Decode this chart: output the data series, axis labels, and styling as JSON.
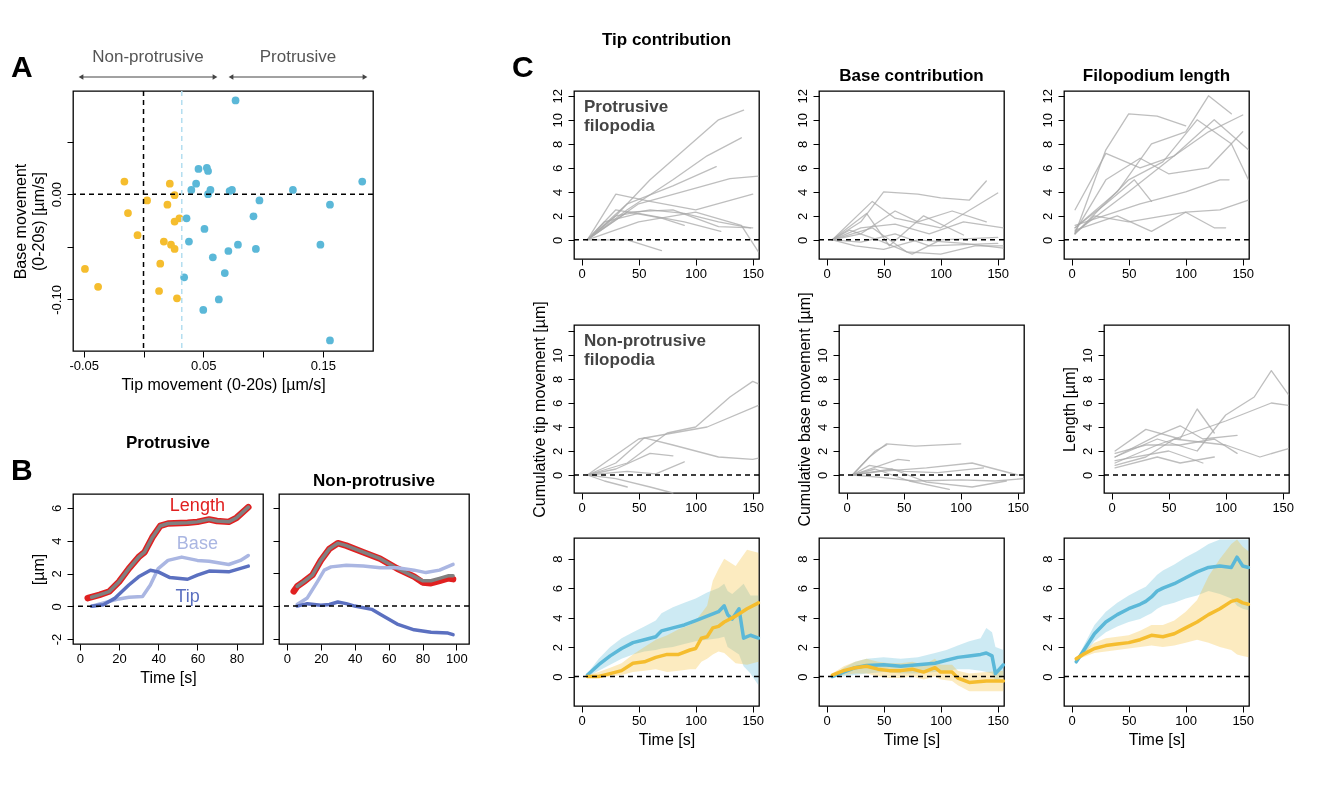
{
  "chart_data": [
    {
      "type": "scatter",
      "xlabel": "Tip movement (0-20s) [µm/s]",
      "ylabel": "Base movement\n(0-20s) [µm/s]",
      "xlim": [
        -0.059,
        0.192
      ],
      "ylim": [
        -0.149,
        0.098
      ],
      "xticks": [
        -0.05,
        {
          "value": 0,
          "label": null
        },
        0.05,
        {
          "value": 0.1,
          "label": null
        },
        0.15
      ],
      "yticks": [
        {
          "value": 0.05,
          "label": null
        },
        {
          "value": 0,
          "label": "0.00"
        },
        {
          "value": -0.05,
          "label": null
        },
        {
          "value": -0.1,
          "label": "-0.10"
        }
      ],
      "marker": "circle",
      "annotations": [
        "A",
        "Non-protrusive",
        "Protrusive"
      ],
      "ref_lines": [
        {
          "axis": "x",
          "value": 0,
          "color": "#000000",
          "line_style": "dashed"
        },
        {
          "axis": "y",
          "value": 0,
          "color": "#000000",
          "line_style": "dashed"
        },
        {
          "axis": "x",
          "value": 0.032,
          "color": "#b4def0",
          "line_style": "dashed"
        }
      ],
      "series": [
        {
          "color": "#f5bd2e",
          "x": [
            -0.016,
            0.022,
            0.026,
            0.003,
            0.02,
            -0.013,
            0.03,
            0.026,
            -0.005,
            0.017,
            0.023,
            0.026,
            0.014,
            -0.049,
            -0.038,
            0.013,
            0.028
          ],
          "values": [
            0.012,
            0.01,
            -0.001,
            -0.006,
            -0.01,
            -0.018,
            -0.023,
            -0.026,
            -0.039,
            -0.045,
            -0.048,
            -0.052,
            -0.066,
            -0.071,
            -0.088,
            -0.092,
            -0.099
          ]
        },
        {
          "color": "#5bb8d8",
          "x": [
            0.077,
            0.046,
            0.053,
            0.054,
            0.044,
            0.04,
            0.056,
            0.054,
            0.072,
            0.074,
            0.125,
            0.183,
            0.097,
            0.156,
            0.036,
            0.092,
            0.051,
            0.038,
            0.079,
            0.071,
            0.094,
            0.148,
            0.058,
            0.068,
            0.034,
            0.063,
            0.05,
            0.156
          ],
          "values": [
            0.089,
            0.024,
            0.025,
            0.022,
            0.01,
            0.004,
            0.004,
            0.0,
            0.003,
            0.004,
            0.004,
            0.012,
            -0.006,
            -0.01,
            -0.023,
            -0.021,
            -0.033,
            -0.045,
            -0.048,
            -0.054,
            -0.052,
            -0.048,
            -0.06,
            -0.075,
            -0.079,
            -0.1,
            -0.11,
            -0.139
          ]
        }
      ]
    },
    {
      "type": "line",
      "title": "Protrusive",
      "ylabel": "[µm]",
      "xlabel": "Time [s]",
      "xlim": [
        -3.5,
        93.5
      ],
      "ylim": [
        -2.3,
        6.85
      ],
      "xticks": [
        0,
        20,
        40,
        60,
        80
      ],
      "yticks": [
        -2,
        0,
        2,
        4,
        6
      ],
      "annotations": [
        "B"
      ],
      "ref_lines": [
        {
          "axis": "y",
          "value": 0,
          "color": "#000000",
          "line_style": "dashed"
        }
      ],
      "series": [
        {
          "name": "Length",
          "color": "#e02020",
          "x": [
            4,
            10,
            15,
            20,
            25,
            30,
            33,
            37,
            41,
            45,
            55,
            60,
            66,
            70,
            76,
            80,
            86
          ],
          "values": [
            0.5,
            0.7,
            0.9,
            1.5,
            2.3,
            3.0,
            3.3,
            4.2,
            4.9,
            5.05,
            5.1,
            5.15,
            5.3,
            5.2,
            5.15,
            5.4,
            6.05
          ]
        },
        {
          "color": "#808080",
          "x": [
            6,
            10,
            15,
            20,
            25,
            30,
            33,
            37,
            41,
            45,
            55,
            60,
            66,
            70,
            76,
            80,
            86
          ],
          "values": [
            0.55,
            0.7,
            0.9,
            1.5,
            2.3,
            3.0,
            3.3,
            4.2,
            4.9,
            5.05,
            5.1,
            5.15,
            5.3,
            5.2,
            5.15,
            5.4,
            6.05
          ]
        },
        {
          "name": "Base",
          "color": "#aab6e2",
          "x": [
            6,
            15,
            20,
            25,
            32,
            36,
            40,
            45,
            52,
            60,
            66,
            76,
            82,
            86
          ],
          "values": [
            0,
            0.3,
            0.45,
            0.55,
            0.6,
            1.3,
            2.3,
            2.8,
            3.0,
            2.8,
            2.75,
            2.55,
            2.8,
            3.1
          ]
        },
        {
          "name": "Tip",
          "color": "#5b70c0",
          "x": [
            6,
            12,
            18,
            25,
            30,
            36,
            40,
            46,
            55,
            60,
            66,
            76,
            86
          ],
          "values": [
            0,
            0.1,
            0.5,
            1.3,
            1.8,
            2.2,
            2.1,
            1.75,
            1.65,
            1.9,
            2.15,
            2.1,
            2.45
          ]
        }
      ]
    },
    {
      "type": "line",
      "title": "Non-protrusive",
      "xlim": [
        -4.7,
        107.4
      ],
      "ylim": [
        -2.32,
        6.86
      ],
      "xticks": [
        0,
        20,
        40,
        60,
        80,
        100
      ],
      "yticks": [
        -2,
        0,
        2,
        4,
        6
      ],
      "tick_labels": "x",
      "ref_lines": [
        {
          "axis": "y",
          "value": 0,
          "color": "#000000",
          "line_style": "dashed"
        }
      ],
      "series": [
        {
          "color": "#e02020",
          "x": [
            4,
            6,
            10,
            15,
            20,
            25,
            30,
            35,
            45,
            55,
            65,
            75,
            80,
            85,
            90,
            95,
            98
          ],
          "values": [
            0.9,
            1.2,
            1.5,
            1.9,
            2.8,
            3.5,
            3.85,
            3.7,
            3.3,
            2.9,
            2.3,
            1.8,
            1.45,
            1.4,
            1.55,
            1.7,
            1.65
          ]
        },
        {
          "color": "#808080",
          "x": [
            6,
            10,
            15,
            20,
            25,
            30,
            35,
            45,
            55,
            65,
            75,
            80,
            85,
            90,
            95,
            98
          ],
          "values": [
            1.2,
            1.5,
            1.9,
            2.8,
            3.5,
            3.85,
            3.7,
            3.3,
            2.9,
            2.3,
            1.8,
            1.55,
            1.55,
            1.7,
            1.85,
            1.85
          ]
        },
        {
          "color": "#aab6e2",
          "x": [
            6,
            12,
            18,
            22,
            26,
            35,
            45,
            55,
            65,
            75,
            82,
            90,
            98
          ],
          "values": [
            0.1,
            0.5,
            1.5,
            2.2,
            2.4,
            2.5,
            2.45,
            2.35,
            2.35,
            2.2,
            2.05,
            2.2,
            2.55
          ]
        },
        {
          "color": "#5b70c0",
          "x": [
            6,
            12,
            20,
            25,
            30,
            35,
            40,
            50,
            55,
            65,
            75,
            85,
            95,
            98
          ],
          "values": [
            0,
            0.15,
            0.05,
            0.1,
            0.25,
            0.15,
            0,
            -0.2,
            -0.5,
            -1.1,
            -1.45,
            -1.6,
            -1.65,
            -1.75
          ]
        }
      ]
    },
    {
      "type": "line",
      "title": "Tip contribution",
      "xlim": [
        -6.7,
        155.5
      ],
      "ylim": [
        -1.6,
        12.4
      ],
      "xticks": [
        0,
        50,
        100,
        150
      ],
      "yticks": [
        0,
        2,
        4,
        6,
        8,
        10,
        12
      ],
      "annotations": [
        "C",
        "Protrusive\nfilopodia"
      ],
      "ref_lines": [
        {
          "axis": "y",
          "value": 0,
          "color": "#000000",
          "line_style": "dashed"
        }
      ],
      "series": [
        {
          "color": "#a8a8a8",
          "x": [
            5,
            30,
            60,
            90,
            120,
            142
          ],
          "values": [
            0,
            2,
            5,
            7.5,
            10,
            10.8
          ]
        },
        {
          "color": "#a8a8a8",
          "x": [
            5,
            40,
            80,
            110,
            140
          ],
          "values": [
            0,
            2.5,
            5,
            7,
            8.5
          ]
        },
        {
          "color": "#a8a8a8",
          "x": [
            5,
            40,
            80,
            118
          ],
          "values": [
            0,
            3,
            4.5,
            6.1
          ]
        },
        {
          "color": "#a8a8a8",
          "x": [
            5,
            50,
            100,
            130,
            155
          ],
          "values": [
            0,
            3,
            4.3,
            5.1,
            5.3
          ]
        },
        {
          "color": "#a8a8a8",
          "x": [
            5,
            30,
            60,
            100,
            150
          ],
          "values": [
            0,
            3.8,
            3.2,
            2.5,
            3.8
          ]
        },
        {
          "color": "#a8a8a8",
          "x": [
            5,
            30,
            60,
            90,
            120,
            148
          ],
          "values": [
            0,
            2,
            2.5,
            2.2,
            1.5,
            1
          ]
        },
        {
          "color": "#a8a8a8",
          "x": [
            5,
            40,
            80,
            120,
            150
          ],
          "values": [
            0,
            2.3,
            2.5,
            1.1,
            1
          ]
        },
        {
          "color": "#a8a8a8",
          "x": [
            5,
            20,
            50,
            90,
            122
          ],
          "values": [
            0,
            1.5,
            2.2,
            1.5,
            0.7
          ]
        },
        {
          "color": "#a8a8a8",
          "x": [
            5,
            40,
            70
          ],
          "values": [
            0,
            0,
            -0.9
          ]
        },
        {
          "color": "#a8a8a8",
          "x": [
            5,
            50,
            100,
            140,
            155
          ],
          "values": [
            0,
            1.5,
            2.3,
            1.2,
            -1
          ]
        },
        {
          "color": "#a8a8a8",
          "x": [
            5,
            30,
            70,
            90
          ],
          "values": [
            0,
            2.5,
            1.8,
            1.2
          ]
        }
      ]
    },
    {
      "type": "line",
      "title": "Base contribution",
      "xlim": [
        -6.7,
        155.5
      ],
      "ylim": [
        -1.6,
        12.4
      ],
      "xticks": [
        0,
        50,
        100,
        150
      ],
      "yticks": [
        0,
        2,
        4,
        6,
        8,
        10,
        12
      ],
      "ref_lines": [
        {
          "axis": "y",
          "value": 0,
          "color": "#000000",
          "line_style": "dashed"
        }
      ],
      "series": [
        {
          "color": "#a8a8a8",
          "x": [
            5,
            30,
            50,
            80,
            100,
            125,
            140
          ],
          "values": [
            0,
            1.5,
            4,
            3.8,
            3.5,
            3.3,
            4.9
          ]
        },
        {
          "color": "#a8a8a8",
          "x": [
            5,
            40,
            60,
            100,
            150
          ],
          "values": [
            0,
            3.2,
            1.8,
            1,
            3.9
          ]
        },
        {
          "color": "#a8a8a8",
          "x": [
            5,
            30,
            60,
            90,
            120,
            155
          ],
          "values": [
            0,
            1,
            1.3,
            0.5,
            1.5,
            1
          ]
        },
        {
          "color": "#a8a8a8",
          "x": [
            5,
            25,
            50,
            80,
            120,
            155
          ],
          "values": [
            0,
            -0.5,
            -0.8,
            0,
            -0.3,
            -0.7
          ]
        },
        {
          "color": "#a8a8a8",
          "x": [
            5,
            40,
            70,
            100,
            130,
            155
          ],
          "values": [
            0,
            1,
            -1,
            -1.2,
            -0.5,
            -0.5
          ]
        },
        {
          "color": "#a8a8a8",
          "x": [
            5,
            30,
            60,
            80,
            110,
            140
          ],
          "values": [
            0,
            0.5,
            2.4,
            1.5,
            2.4,
            1.5
          ]
        },
        {
          "color": "#a8a8a8",
          "x": [
            5,
            20,
            45,
            75,
            100,
            150
          ],
          "values": [
            0,
            0.8,
            0,
            -1.2,
            0,
            0.2
          ]
        },
        {
          "color": "#a8a8a8",
          "x": [
            5,
            35,
            55,
            85,
            120
          ],
          "values": [
            0,
            2.2,
            -0.5,
            2,
            0.4
          ]
        },
        {
          "color": "#a8a8a8",
          "x": [
            5,
            30,
            60,
            90,
            150
          ],
          "values": [
            0,
            -0.2,
            0.5,
            -0.5,
            -0.3
          ]
        }
      ]
    },
    {
      "type": "line",
      "title": "Filopodium length",
      "xlim": [
        -6.7,
        155.5
      ],
      "ylim": [
        -1.6,
        12.4
      ],
      "xticks": [
        0,
        50,
        100,
        150
      ],
      "yticks": [
        0,
        2,
        4,
        6,
        8,
        10,
        12
      ],
      "ref_lines": [
        {
          "axis": "y",
          "value": 0,
          "color": "#000000",
          "line_style": "dashed"
        }
      ],
      "series": [
        {
          "color": "#a8a8a8",
          "x": [
            3,
            30,
            50,
            75,
            100
          ],
          "values": [
            0.5,
            7.5,
            10.5,
            10.3,
            9.5
          ]
        },
        {
          "color": "#a8a8a8",
          "x": [
            3,
            40,
            70,
            100,
            120,
            140
          ],
          "values": [
            1,
            4,
            8,
            9,
            12,
            10.5
          ]
        },
        {
          "color": "#a8a8a8",
          "x": [
            3,
            50,
            90,
            125,
            155
          ],
          "values": [
            0.6,
            4,
            7,
            10,
            7.5
          ]
        },
        {
          "color": "#a8a8a8",
          "x": [
            3,
            30,
            60,
            90,
            120,
            150
          ],
          "values": [
            2.5,
            7.2,
            6,
            7,
            9,
            10.4
          ]
        },
        {
          "color": "#a8a8a8",
          "x": [
            3,
            20,
            50,
            100,
            125,
            135
          ],
          "values": [
            0.5,
            2,
            1.5,
            2.3,
            1,
            1
          ]
        },
        {
          "color": "#a8a8a8",
          "x": [
            3,
            30,
            55,
            70
          ],
          "values": [
            1,
            3,
            5,
            3.2
          ]
        },
        {
          "color": "#a8a8a8",
          "x": [
            3,
            40,
            70,
            100,
            130,
            155
          ],
          "values": [
            0.8,
            2,
            0.7,
            2.3,
            2.5,
            3.3
          ]
        },
        {
          "color": "#a8a8a8",
          "x": [
            3,
            50,
            80,
            110,
            140,
            155
          ],
          "values": [
            0.5,
            5,
            6.5,
            10,
            8,
            5
          ]
        },
        {
          "color": "#a8a8a8",
          "x": [
            3,
            60,
            100,
            130,
            138
          ],
          "values": [
            1.2,
            3,
            4,
            5,
            5
          ]
        },
        {
          "color": "#a8a8a8",
          "x": [
            3,
            30,
            60,
            85,
            120,
            150
          ],
          "values": [
            0.7,
            5,
            6.8,
            5.5,
            6,
            9
          ]
        }
      ]
    },
    {
      "type": "line",
      "ylabel": "Cumulative tip movement [µm]",
      "xlim": [
        -6.7,
        155.5
      ],
      "ylim": [
        -1.5,
        12.5
      ],
      "xticks": [
        0,
        50,
        100,
        150
      ],
      "yticks": [
        0,
        2,
        4,
        6,
        8,
        10,
        {
          "value": 12,
          "label": null
        }
      ],
      "annotations": [
        "Non-protrusive\nfilopodia"
      ],
      "ref_lines": [
        {
          "axis": "y",
          "value": 0,
          "color": "#000000",
          "line_style": "dashed"
        }
      ],
      "series": [
        {
          "color": "#a8a8a8",
          "x": [
            5,
            40,
            75,
            100,
            130,
            150,
            155
          ],
          "values": [
            0,
            1,
            3.5,
            4,
            6.5,
            7.8,
            7.6
          ]
        },
        {
          "color": "#a8a8a8",
          "x": [
            5,
            50,
            80,
            110,
            155
          ],
          "values": [
            0,
            3,
            3.5,
            4,
            5.8
          ]
        },
        {
          "color": "#a8a8a8",
          "x": [
            5,
            30,
            55,
            80,
            120,
            150,
            155
          ],
          "values": [
            0,
            1,
            3.1,
            2.5,
            1.5,
            1.3,
            1.4
          ]
        },
        {
          "color": "#a8a8a8",
          "x": [
            5,
            30,
            60,
            80
          ],
          "values": [
            0,
            0.5,
            1.8,
            1.6
          ]
        },
        {
          "color": "#a8a8a8",
          "x": [
            5,
            20,
            40
          ],
          "values": [
            0,
            -0.5,
            -1
          ]
        },
        {
          "color": "#a8a8a8",
          "x": [
            5,
            30,
            60,
            80
          ],
          "values": [
            0,
            -0.3,
            -1,
            -1.5
          ]
        },
        {
          "color": "#a8a8a8",
          "x": [
            5,
            40,
            65,
            90
          ],
          "values": [
            0,
            0.3,
            0.1,
            1.1
          ]
        }
      ]
    },
    {
      "type": "line",
      "ylabel": "Cumulative base movement [µm]",
      "xlim": [
        -6.7,
        155.5
      ],
      "ylim": [
        -1.5,
        12.5
      ],
      "xticks": [
        0,
        50,
        100,
        150
      ],
      "yticks": [
        0,
        2,
        4,
        6,
        8,
        10,
        {
          "value": 12,
          "label": null
        }
      ],
      "ref_lines": [
        {
          "axis": "y",
          "value": 0,
          "color": "#000000",
          "line_style": "dashed"
        }
      ],
      "series": [
        {
          "color": "#a8a8a8",
          "x": [
            5,
            20,
            35,
            60,
            100
          ],
          "values": [
            0,
            1.5,
            2.6,
            2.4,
            2.6
          ]
        },
        {
          "color": "#a8a8a8",
          "x": [
            5,
            25,
            35
          ],
          "values": [
            0,
            2,
            2.5
          ]
        },
        {
          "color": "#a8a8a8",
          "x": [
            5,
            20,
            50,
            80,
            120
          ],
          "values": [
            0,
            0.8,
            0.3,
            0.2,
            0.6
          ]
        },
        {
          "color": "#a8a8a8",
          "x": [
            5,
            25,
            55,
            90
          ],
          "values": [
            0,
            0.5,
            -0.5,
            -1.2
          ]
        },
        {
          "color": "#a8a8a8",
          "x": [
            5,
            30,
            70,
            110,
            150
          ],
          "values": [
            0,
            0.3,
            0.6,
            1,
            0
          ]
        },
        {
          "color": "#a8a8a8",
          "x": [
            5,
            30,
            60,
            100,
            130,
            155
          ],
          "values": [
            0,
            -0.2,
            -0.5,
            -0.4,
            -0.5,
            -0.3
          ]
        },
        {
          "color": "#a8a8a8",
          "x": [
            5,
            40,
            70,
            110,
            140
          ],
          "values": [
            0,
            0.5,
            -0.6,
            -1,
            -0.5
          ]
        },
        {
          "color": "#a8a8a8",
          "x": [
            5,
            45,
            55
          ],
          "values": [
            0,
            1.3,
            1.2
          ]
        }
      ]
    },
    {
      "type": "line",
      "ylabel": "Length [µm]",
      "xlim": [
        -6.7,
        155.5
      ],
      "ylim": [
        -1.5,
        12.5
      ],
      "xticks": [
        0,
        50,
        100,
        150
      ],
      "yticks": [
        0,
        2,
        4,
        6,
        8,
        10,
        {
          "value": 12,
          "label": null
        }
      ],
      "ref_lines": [
        {
          "axis": "y",
          "value": 0,
          "color": "#000000",
          "line_style": "dashed"
        }
      ],
      "series": [
        {
          "color": "#a8a8a8",
          "x": [
            3,
            40,
            75,
            100,
            125,
            140,
            155
          ],
          "values": [
            1.5,
            3,
            2,
            5,
            6.5,
            8.7,
            6.7
          ]
        },
        {
          "color": "#a8a8a8",
          "x": [
            3,
            40,
            70,
            100,
            140,
            155
          ],
          "values": [
            1,
            2.5,
            3.5,
            4.5,
            6,
            5.8
          ]
        },
        {
          "color": "#a8a8a8",
          "x": [
            3,
            30,
            60,
            75,
            90
          ],
          "values": [
            2,
            3.8,
            3,
            5.5,
            3.5
          ]
        },
        {
          "color": "#a8a8a8",
          "x": [
            3,
            40,
            60,
            80,
            110
          ],
          "values": [
            1.5,
            3.3,
            4.1,
            3,
            3.3
          ]
        },
        {
          "color": "#a8a8a8",
          "x": [
            3,
            30,
            55,
            100,
            130,
            155
          ],
          "values": [
            0.8,
            1.5,
            3,
            2.5,
            1.5,
            2.2
          ]
        },
        {
          "color": "#a8a8a8",
          "x": [
            3,
            40,
            60,
            90
          ],
          "values": [
            0.6,
            1.5,
            1,
            1.5
          ]
        },
        {
          "color": "#a8a8a8",
          "x": [
            3,
            30,
            60,
            90,
            110
          ],
          "values": [
            1.8,
            2.5,
            2.5,
            3,
            1.8
          ]
        },
        {
          "color": "#a8a8a8",
          "x": [
            3,
            50,
            80
          ],
          "values": [
            1.2,
            2,
            1
          ]
        }
      ]
    },
    {
      "type": "line",
      "xlabel": "Time [s]",
      "xlim": [
        -6.7,
        155.5
      ],
      "ylim": [
        -2,
        9.4
      ],
      "xticks": [
        0,
        50,
        100,
        150
      ],
      "yticks": [
        0,
        2,
        4,
        6,
        8
      ],
      "ref_lines": [
        {
          "axis": "y",
          "value": 0,
          "color": "#000000",
          "line_style": "dashed"
        }
      ],
      "series": [
        {
          "color": "#5bb8d8",
          "x": [
            5,
            15,
            25,
            35,
            45,
            55,
            65,
            70,
            80,
            90,
            100,
            110,
            120,
            125,
            128,
            132,
            138,
            142,
            148,
            155
          ],
          "values": [
            0.1,
            0.8,
            1.4,
            1.9,
            2.3,
            2.5,
            2.7,
            3.1,
            3.3,
            3.5,
            3.8,
            4.1,
            4.4,
            4.8,
            4.2,
            3.9,
            4.6,
            2.6,
            2.8,
            2.6
          ],
          "lower": [
            0,
            0.4,
            0.8,
            1.2,
            1.5,
            1.7,
            1.8,
            1.9,
            2.0,
            2.2,
            2.4,
            2.5,
            2.6,
            2.7,
            2.0,
            1.8,
            1.5,
            0.7,
            0.2,
            -0.6
          ],
          "upper": [
            0.2,
            1.2,
            2.0,
            2.6,
            3.0,
            3.4,
            3.8,
            4.3,
            4.7,
            5.0,
            5.3,
            5.7,
            6.0,
            6.3,
            5.8,
            5.6,
            6.0,
            6.3,
            5.5,
            5.5
          ]
        },
        {
          "color": "#f5bd2e",
          "x": [
            5,
            15,
            25,
            35,
            45,
            55,
            65,
            75,
            85,
            95,
            100,
            105,
            110,
            115,
            120,
            125,
            135,
            145,
            155
          ],
          "values": [
            0,
            0,
            0.2,
            0.4,
            0.9,
            1.0,
            1.3,
            1.5,
            1.5,
            1.8,
            1.9,
            2.6,
            2.7,
            3.3,
            3.4,
            3.7,
            4.1,
            4.6,
            5.0
          ],
          "lower": [
            0,
            -0.1,
            0,
            0.1,
            0.3,
            0.4,
            0.5,
            0.3,
            0.4,
            0.5,
            0.5,
            1.0,
            1.2,
            1.5,
            1.7,
            1.6,
            0.9,
            0.8,
            1.0
          ],
          "upper": [
            0.1,
            0.3,
            0.6,
            0.9,
            1.5,
            2.0,
            2.5,
            2.8,
            3.2,
            3.5,
            3.8,
            4.3,
            4.8,
            6.5,
            7.3,
            8.0,
            7.5,
            8.6,
            8.4
          ]
        }
      ]
    },
    {
      "type": "line",
      "xlabel": "Time [s]",
      "xlim": [
        -6.7,
        155.5
      ],
      "ylim": [
        -2,
        9.4
      ],
      "xticks": [
        0,
        50,
        100,
        150
      ],
      "yticks": [
        0,
        2,
        4,
        6,
        8
      ],
      "ref_lines": [
        {
          "axis": "y",
          "value": 0,
          "color": "#000000",
          "line_style": "dashed"
        }
      ],
      "series": [
        {
          "color": "#5bb8d8",
          "x": [
            5,
            15,
            25,
            35,
            50,
            65,
            80,
            95,
            105,
            115,
            125,
            135,
            140,
            145,
            148,
            155
          ],
          "values": [
            0,
            0.3,
            0.6,
            0.75,
            0.8,
            0.7,
            0.8,
            0.9,
            1.1,
            1.3,
            1.4,
            1.5,
            1.6,
            1.4,
            0.2,
            0.8
          ],
          "lower": [
            0,
            0,
            0.1,
            0.2,
            0.3,
            0.2,
            0.2,
            0.3,
            0.4,
            0.5,
            0.5,
            0.4,
            0.3,
            0.2,
            -0.3,
            0
          ],
          "upper": [
            0,
            0.6,
            1.0,
            1.2,
            1.3,
            1.2,
            1.3,
            1.6,
            1.8,
            2.1,
            2.4,
            2.6,
            3.3,
            3.0,
            2.0,
            1.8
          ]
        },
        {
          "color": "#f5bd2e",
          "x": [
            5,
            15,
            25,
            35,
            45,
            55,
            65,
            75,
            85,
            95,
            100,
            110,
            115,
            125,
            140,
            155
          ],
          "values": [
            0.1,
            0.4,
            0.6,
            0.7,
            0.5,
            0.4,
            0.4,
            0.5,
            0.3,
            0.6,
            0.3,
            0.3,
            -0.1,
            -0.4,
            -0.3,
            -0.3
          ],
          "lower": [
            0,
            0.1,
            0.2,
            0.2,
            0,
            -0.1,
            -0.1,
            0,
            -0.2,
            0,
            -0.2,
            -0.3,
            -0.6,
            -1.0,
            -1.0,
            -1.0
          ],
          "upper": [
            0.2,
            0.7,
            1.0,
            1.2,
            1.0,
            0.9,
            0.9,
            1.0,
            0.8,
            1.2,
            0.8,
            0.8,
            0.4,
            0.2,
            0.3,
            0.4
          ]
        }
      ]
    },
    {
      "type": "line",
      "xlabel": "Time [s]",
      "xlim": [
        -6.7,
        155.5
      ],
      "ylim": [
        -2,
        9.4
      ],
      "xticks": [
        0,
        50,
        100,
        150
      ],
      "yticks": [
        0,
        2,
        4,
        6,
        8
      ],
      "ref_lines": [
        {
          "axis": "y",
          "value": 0,
          "color": "#000000",
          "line_style": "dashed"
        }
      ],
      "series": [
        {
          "color": "#5bb8d8",
          "x": [
            4,
            10,
            20,
            30,
            40,
            50,
            60,
            65,
            70,
            75,
            80,
            90,
            100,
            110,
            120,
            130,
            140,
            145,
            150,
            155
          ],
          "values": [
            1.0,
            1.7,
            2.9,
            3.7,
            4.2,
            4.6,
            4.9,
            5.1,
            5.4,
            5.8,
            6.0,
            6.3,
            6.7,
            7.1,
            7.4,
            7.5,
            7.4,
            8.1,
            7.5,
            7.4
          ],
          "lower": [
            0.9,
            1.4,
            2.4,
            3.0,
            3.4,
            3.7,
            3.9,
            4.1,
            4.3,
            4.6,
            4.8,
            5.0,
            5.3,
            5.5,
            5.8,
            5.6,
            5.3,
            4.8,
            4.6,
            4.5
          ],
          "upper": [
            1.1,
            2.0,
            3.5,
            4.4,
            5.0,
            5.5,
            5.9,
            6.1,
            6.5,
            6.9,
            7.2,
            7.6,
            8.1,
            8.5,
            9.0,
            9.3,
            9.3,
            9.3,
            9.3,
            9.3
          ]
        },
        {
          "color": "#f5bd2e",
          "x": [
            4,
            10,
            20,
            30,
            40,
            50,
            60,
            70,
            80,
            90,
            100,
            110,
            120,
            130,
            140,
            145,
            150,
            155
          ],
          "values": [
            1.2,
            1.5,
            1.9,
            2.1,
            2.2,
            2.3,
            2.5,
            2.8,
            2.7,
            2.9,
            3.3,
            3.7,
            4.2,
            4.6,
            5.1,
            5.2,
            5.0,
            4.9
          ],
          "lower": [
            1.1,
            1.3,
            1.6,
            1.7,
            1.8,
            1.9,
            2.0,
            2.1,
            2.0,
            2.1,
            2.3,
            2.5,
            2.3,
            2.0,
            1.8,
            1.5,
            1.4,
            1.3
          ],
          "upper": [
            1.3,
            1.7,
            2.3,
            2.6,
            2.7,
            2.8,
            3.1,
            3.5,
            3.5,
            3.8,
            4.4,
            5.2,
            6.8,
            8.0,
            9.0,
            9.3,
            8.8,
            8.5
          ]
        }
      ]
    }
  ]
}
